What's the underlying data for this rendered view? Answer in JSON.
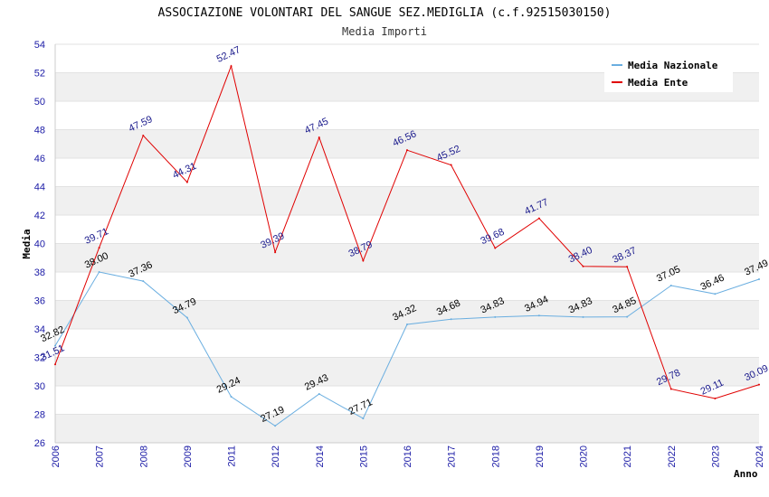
{
  "chart_data": {
    "type": "line",
    "title": "ASSOCIAZIONE VOLONTARI DEL SANGUE SEZ.MEDIGLIA (c.f.92515030150)",
    "subtitle": "Media Importi",
    "xlabel": "Anno",
    "ylabel": "Media",
    "ylim": [
      26,
      54
    ],
    "yticks": [
      26,
      28,
      30,
      32,
      34,
      36,
      38,
      40,
      42,
      44,
      46,
      48,
      50,
      52,
      54
    ],
    "categories": [
      "2006",
      "2007",
      "2008",
      "2009",
      "2011",
      "2012",
      "2014",
      "2015",
      "2016",
      "2017",
      "2018",
      "2019",
      "2020",
      "2021",
      "2022",
      "2023",
      "2024"
    ],
    "grid": "horizontal bands",
    "legend_position": "top-right",
    "series": [
      {
        "name": "Media Nazionale",
        "color": "#6aaee0",
        "values": [
          32.82,
          38.0,
          37.36,
          34.79,
          29.24,
          27.19,
          29.43,
          27.71,
          34.32,
          34.68,
          34.83,
          34.94,
          34.83,
          34.85,
          37.05,
          36.46,
          37.49
        ],
        "labels": [
          "32.82",
          "38.00",
          "37.36",
          "34.79",
          "29.24",
          "27.19",
          "29.43",
          "27.71",
          "34.32",
          "34.68",
          "34.83",
          "34.94",
          "34.83",
          "34.85",
          "37.05",
          "36.46",
          "37.49"
        ]
      },
      {
        "name": "Media Ente",
        "color": "#e00000",
        "values": [
          31.51,
          39.71,
          47.59,
          44.31,
          52.47,
          39.39,
          47.45,
          38.79,
          46.56,
          45.52,
          39.68,
          41.77,
          38.4,
          38.37,
          29.78,
          29.11,
          30.09
        ],
        "labels": [
          "31.51",
          "39.71",
          "47.59",
          "44.31",
          "52.47",
          "39.39",
          "47.45",
          "38.79",
          "46.56",
          "45.52",
          "39.68",
          "41.77",
          "38.40",
          "38.37",
          "29.78",
          "29.11",
          "30.09"
        ]
      }
    ]
  }
}
